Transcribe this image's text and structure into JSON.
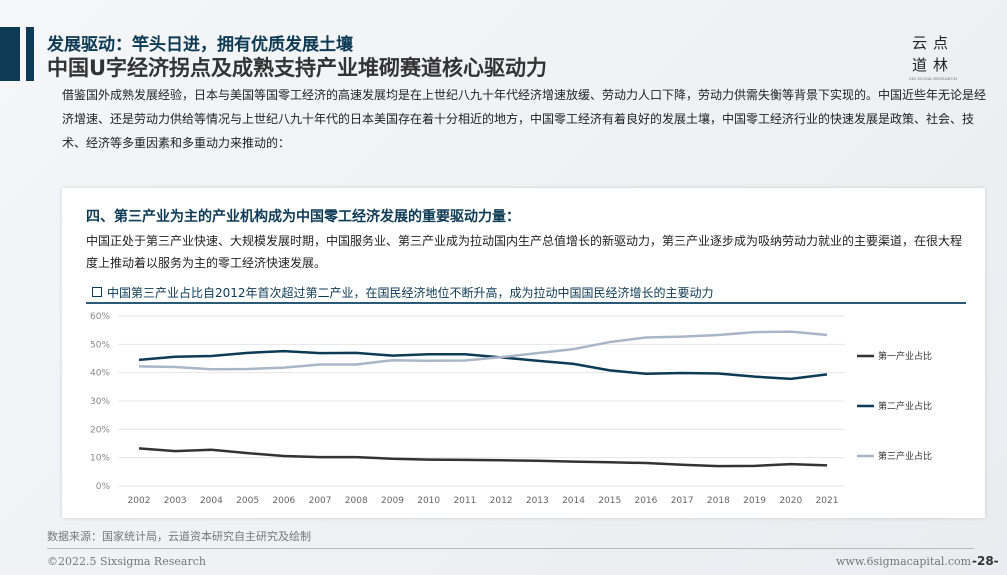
{
  "header": {
    "subtitle": "发展驱动：竿头日进，拥有优质发展土壤",
    "title": "中国U字经济拐点及成熟支持产业堆砌赛道核心驱动力"
  },
  "logo": {
    "chars": "云点道林",
    "small": "SIX SIGMA RESEARCH"
  },
  "intro": "借鉴国外成熟发展经验，日本与美国等国零工经济的高速发展均是在上世纪八九十年代经济增速放缓、劳动力人口下降，劳动力供需失衡等背景下实现的。中国近些年无论是经济增速、还是劳动力供给等情况与上世纪八九十年代的日本美国存在着十分相近的地方，中国零工经济有着良好的发展土壤，中国零工经济行业的快速发展是政策、社会、技术、经济等多重因素和多重动力来推动的：",
  "card": {
    "heading": "四、第三产业为主的产业机构成为中国零工经济发展的重要驱动力量：",
    "text": "中国正处于第三产业快速、大规模发展时期，中国服务业、第三产业成为拉动国内生产总值增长的新驱动力，第三产业逐步成为吸纳劳动力就业的主要渠道，在很大程度上推动着以服务为主的零工经济快速发展。"
  },
  "chart_data": {
    "type": "line",
    "title": "中国第三产业占比自2012年首次超过第二产业，在国民经济地位不断升高，成为拉动中国国民经济增长的主要动力",
    "categories": [
      "2002",
      "2003",
      "2004",
      "2005",
      "2006",
      "2007",
      "2008",
      "2009",
      "2010",
      "2011",
      "2012",
      "2013",
      "2014",
      "2015",
      "2016",
      "2017",
      "2018",
      "2019",
      "2020",
      "2021"
    ],
    "yticks": [
      "0%",
      "10%",
      "20%",
      "30%",
      "40%",
      "50%",
      "60%"
    ],
    "ylim": [
      0,
      60
    ],
    "legend": "right",
    "series": [
      {
        "name": "第一产业占比",
        "color": "#333333",
        "values": [
          13.3,
          12.3,
          12.8,
          11.6,
          10.6,
          10.2,
          10.2,
          9.6,
          9.3,
          9.2,
          9.1,
          8.9,
          8.6,
          8.4,
          8.1,
          7.5,
          7.0,
          7.1,
          7.7,
          7.3
        ]
      },
      {
        "name": "第二产业占比",
        "color": "#0d3a55",
        "values": [
          44.5,
          45.6,
          45.9,
          47.0,
          47.6,
          46.9,
          47.0,
          46.0,
          46.5,
          46.5,
          45.4,
          44.2,
          43.1,
          40.8,
          39.6,
          39.9,
          39.7,
          38.6,
          37.8,
          39.4
        ]
      },
      {
        "name": "第三产业占比",
        "color": "#a9b6c8",
        "values": [
          42.2,
          42.0,
          41.2,
          41.3,
          41.8,
          42.9,
          42.9,
          44.4,
          44.2,
          44.3,
          45.5,
          46.9,
          48.3,
          50.8,
          52.4,
          52.7,
          53.3,
          54.3,
          54.5,
          53.3
        ]
      }
    ]
  },
  "footer": {
    "source": "数据来源：国家统计局，云道资本研究自主研究及绘制",
    "copyright": "©2022.5 Sixsigma Research",
    "url": "www.6sigmacapital.com",
    "page": "-28-"
  }
}
